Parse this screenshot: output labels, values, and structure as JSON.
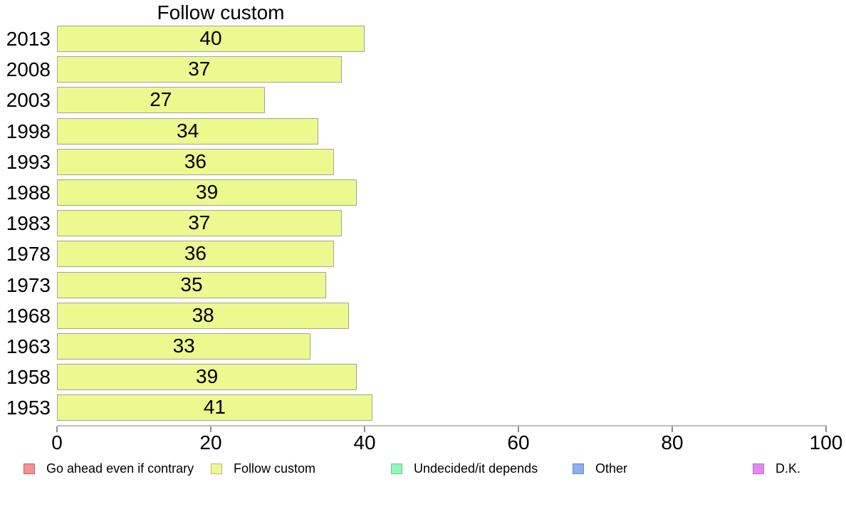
{
  "chart_data": {
    "type": "bar",
    "orientation": "horizontal",
    "title": "Follow custom",
    "categories": [
      "2013",
      "2008",
      "2003",
      "1998",
      "1993",
      "1988",
      "1983",
      "1978",
      "1973",
      "1968",
      "1963",
      "1958",
      "1953"
    ],
    "values": [
      40,
      37,
      27,
      34,
      36,
      39,
      37,
      36,
      35,
      38,
      33,
      39,
      41
    ],
    "xlim": [
      0,
      100
    ],
    "x_ticks": [
      0,
      20,
      40,
      60,
      80,
      100
    ],
    "grid": false,
    "legend_position": "bottom",
    "bar_fill_color": "#ebf98e",
    "bar_border_color": "#a3a49c",
    "axis_line_color": "#bdbdbd",
    "legend": [
      {
        "label": "Go ahead even if contrary",
        "fill": "#f88f8f",
        "border": "#b06f6f"
      },
      {
        "label": "Follow custom",
        "fill": "#ebf98e",
        "border": "#b3bd6e"
      },
      {
        "label": "Undecided/it depends",
        "fill": "#8ef8ba",
        "border": "#6fc492"
      },
      {
        "label": "Other",
        "fill": "#89b1f4",
        "border": "#7584cc"
      },
      {
        "label": "D.K.",
        "fill": "#e588f2",
        "border": "#b470c4"
      }
    ]
  }
}
